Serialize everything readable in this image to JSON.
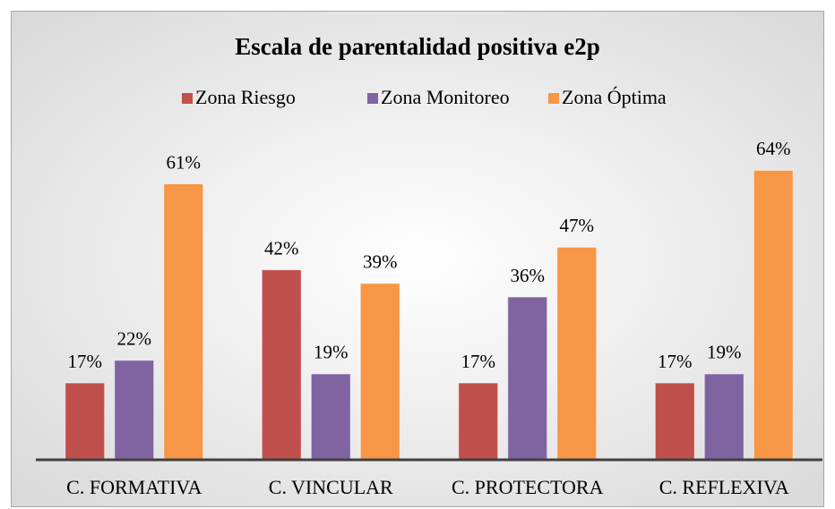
{
  "chart_data": {
    "type": "bar",
    "title": "Escala de parentalidad positiva e2p",
    "categories": [
      "C. FORMATIVA",
      "C. VINCULAR",
      "C. PROTECTORA",
      "C. REFLEXIVA"
    ],
    "series": [
      {
        "name": "Zona Riesgo",
        "color": "#c0504d",
        "values": [
          17,
          42,
          17,
          17
        ],
        "value_labels": [
          "17%",
          "42%",
          "17%",
          "17%"
        ]
      },
      {
        "name": "Zona Monitoreo",
        "color": "#8064a2",
        "values": [
          22,
          19,
          36,
          19
        ],
        "value_labels": [
          "22%",
          "19%",
          "36%",
          "19%"
        ]
      },
      {
        "name": "Zona Óptima",
        "color": "#f79646",
        "values": [
          61,
          39,
          47,
          64
        ],
        "value_labels": [
          "61%",
          "39%",
          "47%",
          "64%"
        ]
      }
    ],
    "ylim": [
      0,
      70
    ],
    "grid": false,
    "legend": "top"
  }
}
